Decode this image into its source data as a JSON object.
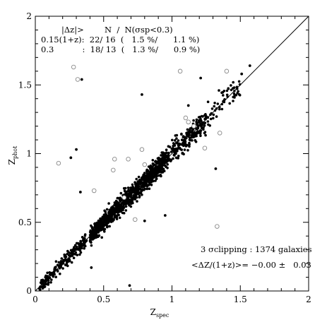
{
  "chart_data": {
    "type": "scatter",
    "xlabel": "Z",
    "xlabel_sub": "spec",
    "ylabel": "Z",
    "ylabel_sub": "phot",
    "xlim": [
      0,
      2
    ],
    "ylim": [
      0,
      2
    ],
    "x_ticks": [
      "0",
      "0.5",
      "1",
      "1.5",
      "2"
    ],
    "y_ticks": [
      "0",
      "0.5",
      "1",
      "1.5",
      "2"
    ],
    "x_tick_values": [
      0,
      0.5,
      1,
      1.5,
      2
    ],
    "y_tick_values": [
      0,
      0.5,
      1,
      1.5,
      2
    ],
    "reference_line": {
      "x": [
        0,
        2
      ],
      "y": [
        0,
        2
      ]
    },
    "grid": false,
    "legend_table": {
      "header": "|Δz|>        N  /  N(σsp<0.3)",
      "row1": "0.15(1+z):  22/ 16  (   1.5 %/      1.1 %)",
      "row2": "0.3           :  18/ 13  (   1.3 %/      0.9 %)"
    },
    "stats_line1": "3 σclipping : 1374 galaxies",
    "stats_line2": "<ΔZ/(1+z)>= −0.00 ±   0.03",
    "outliers_open": [
      [
        0.28,
        1.63
      ],
      [
        0.31,
        1.54
      ],
      [
        0.17,
        0.93
      ],
      [
        0.57,
        0.88
      ],
      [
        0.43,
        0.73
      ],
      [
        0.68,
        0.96
      ],
      [
        0.65,
        0.68
      ],
      [
        0.78,
        1.03
      ],
      [
        0.8,
        0.92
      ],
      [
        1.06,
        1.6
      ],
      [
        1.1,
        1.26
      ],
      [
        1.12,
        1.23
      ],
      [
        1.16,
        1.2
      ],
      [
        1.24,
        1.04
      ],
      [
        1.4,
        1.6
      ],
      [
        1.35,
        1.15
      ],
      [
        1.33,
        0.47
      ],
      [
        0.58,
        0.96
      ],
      [
        0.73,
        0.52
      ]
    ],
    "outliers_filled": [
      [
        0.34,
        1.54
      ],
      [
        0.78,
        1.43
      ],
      [
        0.8,
        0.51
      ],
      [
        0.69,
        0.04
      ],
      [
        0.26,
        0.97
      ],
      [
        0.3,
        1.03
      ],
      [
        1.32,
        0.89
      ],
      [
        1.12,
        1.35
      ],
      [
        1.51,
        1.58
      ],
      [
        1.57,
        1.64
      ],
      [
        1.21,
        1.55
      ],
      [
        0.41,
        0.17
      ],
      [
        0.95,
        0.55
      ],
      [
        0.33,
        0.72
      ]
    ],
    "bulk_points": {
      "count": 1374,
      "x_range": [
        0.03,
        1.5
      ],
      "trend": "y ≈ x with scatter ±0.03(1+z)"
    }
  }
}
